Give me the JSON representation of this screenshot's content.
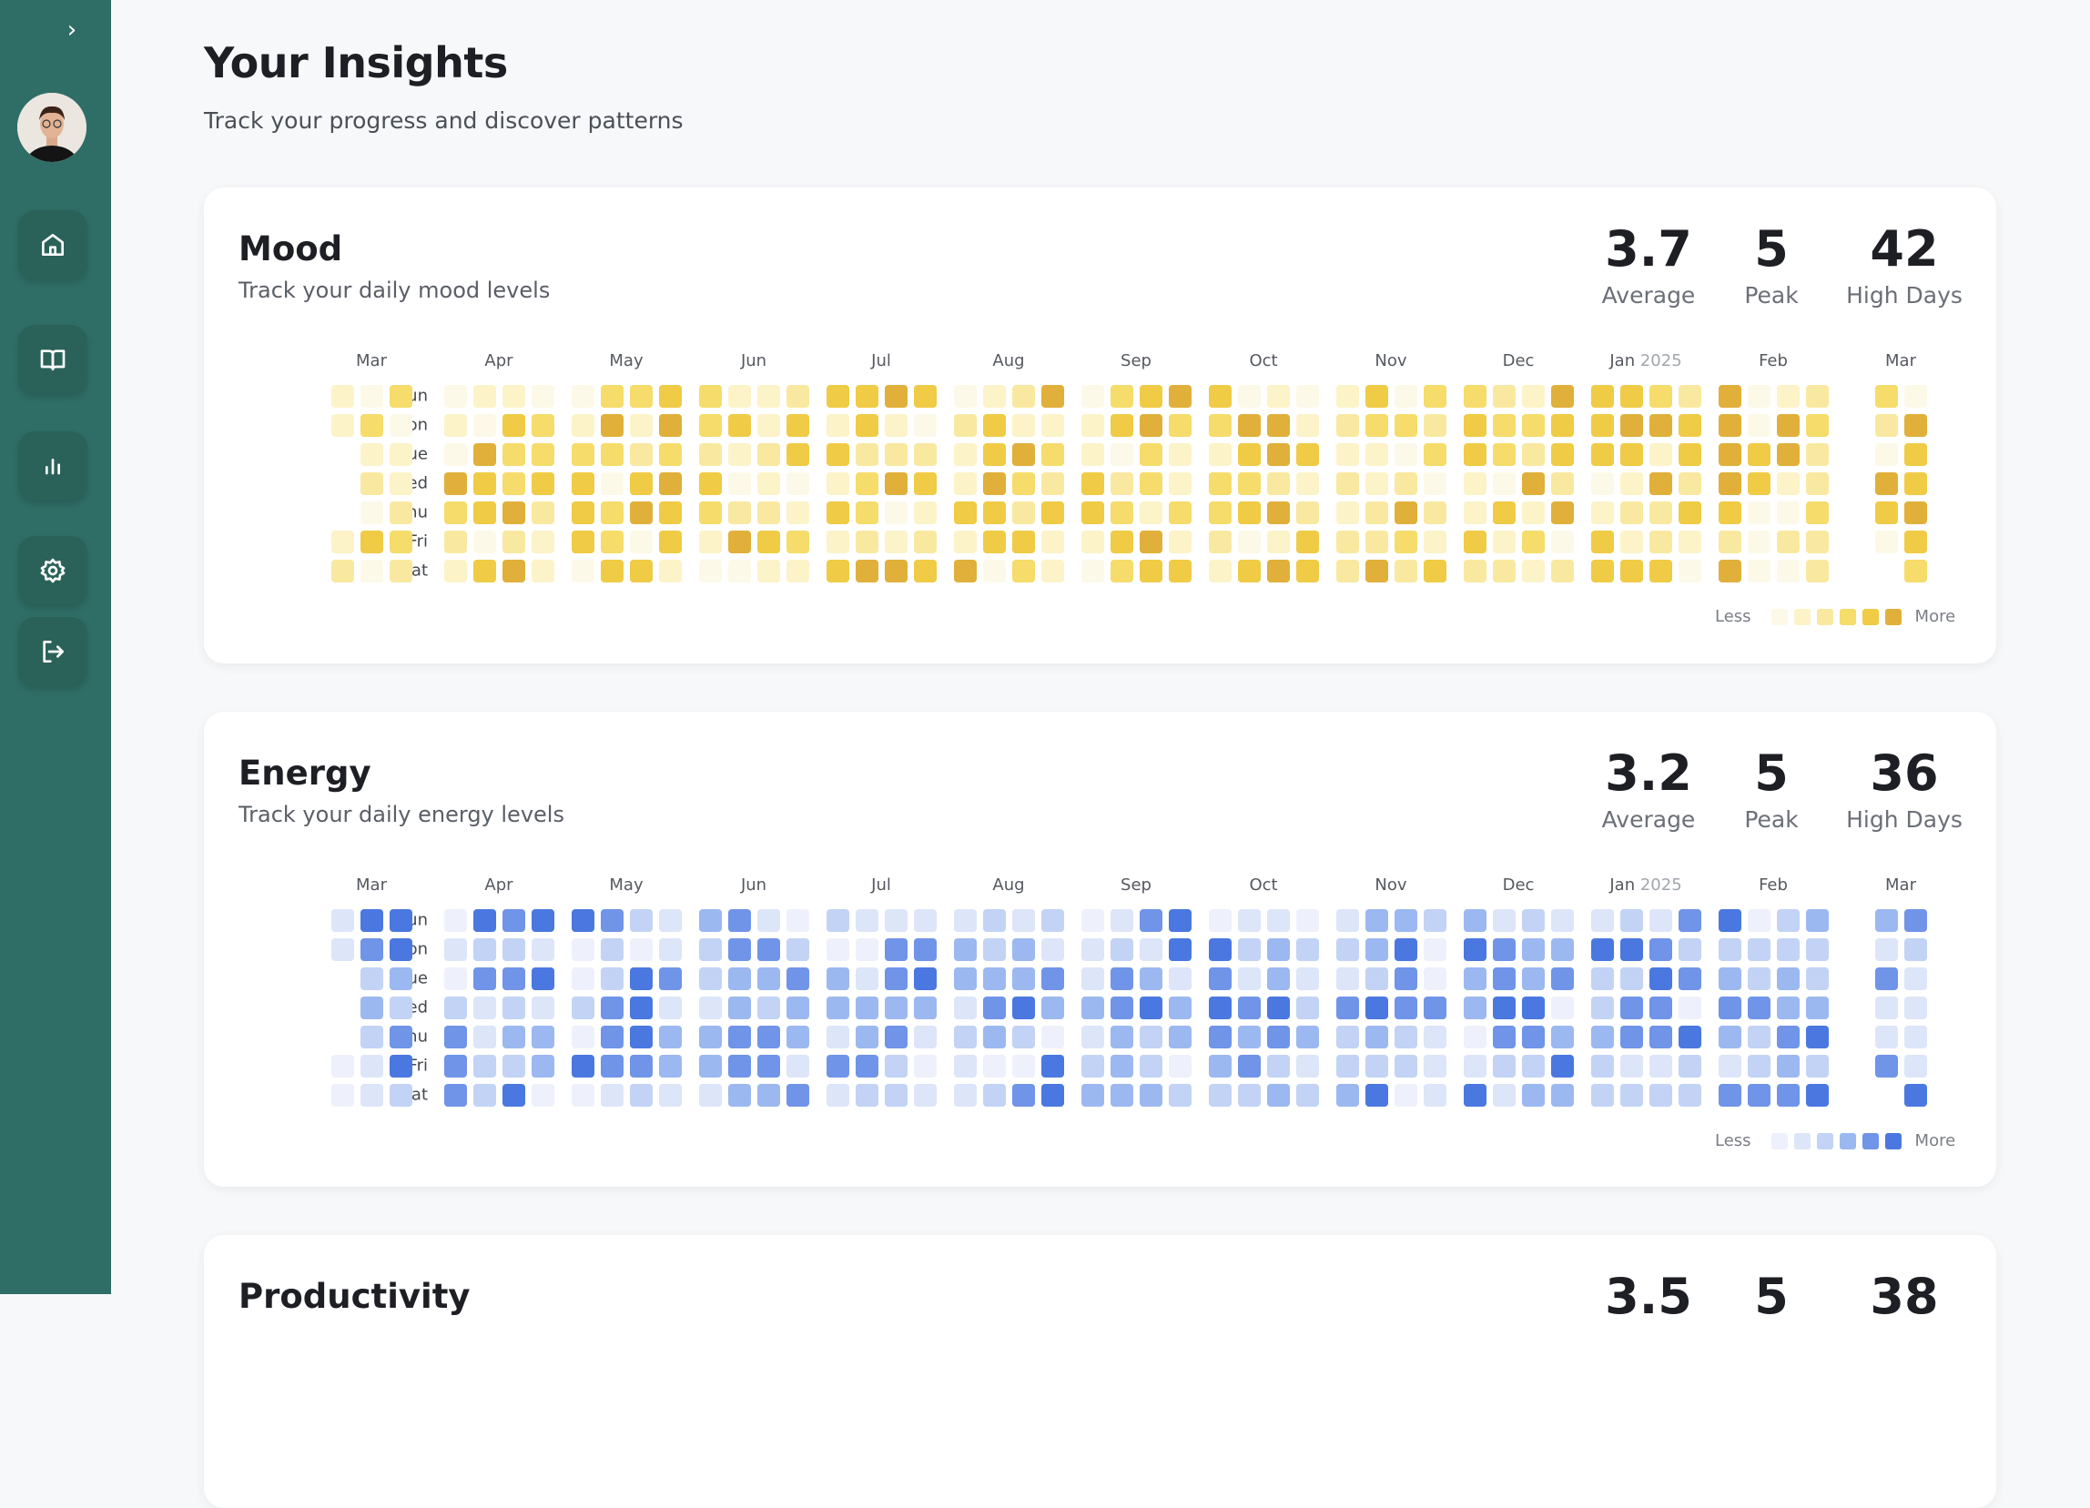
{
  "sidebar": {
    "expand_icon": "chevron-right-icon",
    "items": [
      {
        "name": "home",
        "icon": "home-icon"
      },
      {
        "name": "journal",
        "icon": "book-open-icon"
      },
      {
        "name": "insights",
        "icon": "bar-chart-icon"
      },
      {
        "name": "settings",
        "icon": "gear-icon"
      },
      {
        "name": "logout",
        "icon": "logout-icon"
      }
    ]
  },
  "header": {
    "title": "Your Insights",
    "subtitle": "Track your progress and discover patterns"
  },
  "legend": {
    "less": "Less",
    "more": "More"
  },
  "days": [
    "Sun",
    "Mon",
    "Tue",
    "Wed",
    "Thu",
    "Fri",
    "Sat"
  ],
  "months": [
    {
      "m": "Mar"
    },
    {
      "m": "Apr"
    },
    {
      "m": "May"
    },
    {
      "m": "Jun"
    },
    {
      "m": "Jul"
    },
    {
      "m": "Aug"
    },
    {
      "m": "Sep"
    },
    {
      "m": "Oct"
    },
    {
      "m": "Nov"
    },
    {
      "m": "Dec"
    },
    {
      "m": "Jan",
      "year": "2025"
    },
    {
      "m": "Feb"
    },
    {
      "m": "Mar"
    }
  ],
  "cards": [
    {
      "title": "Mood",
      "subtitle": "Track your daily mood levels",
      "stats": [
        {
          "value": "3.7",
          "label": "Average"
        },
        {
          "value": "5",
          "label": "Peak"
        },
        {
          "value": "42",
          "label": "High Days"
        }
      ],
      "colors": [
        "#fdf9e8",
        "#fcf3c8",
        "#f9e9a0",
        "#f6dc6a",
        "#f0cb45",
        "#e0b03a"
      ],
      "chart_data": {
        "type": "heatmap",
        "levels": [
          0,
          5
        ],
        "weeks_by_month": [
          [
            "103",
            "130",
            ".11",
            ".21",
            ".02",
            "143",
            "202"
          ],
          [
            "0110",
            "1043",
            "0533",
            "5434",
            "3452",
            "2021",
            "1451"
          ],
          [
            "0334",
            "1515",
            "3323",
            "4045",
            "4354",
            "4304",
            "0441"
          ],
          [
            "3112",
            "3414",
            "2124",
            "4010",
            "3221",
            "1543",
            "0011"
          ],
          [
            "4454",
            "1410",
            "4222",
            "1354",
            "4301",
            "1212",
            "4554"
          ],
          [
            "0125",
            "2411",
            "1453",
            "1532",
            "4424",
            "1441",
            "5031"
          ],
          [
            "0345",
            "1453",
            "1031",
            "4231",
            "4313",
            "1451",
            "0344"
          ],
          [
            "4010",
            "3551",
            "1454",
            "3321",
            "3452",
            "2014",
            "1454"
          ],
          [
            "1403",
            "2332",
            "1103",
            "2120",
            "1252",
            "2231",
            "2524"
          ],
          [
            "3215",
            "4334",
            "4324",
            "1052",
            "1415",
            "4130",
            "2212"
          ],
          [
            "4432",
            "4554",
            "4414",
            "0152",
            "1224",
            "4121",
            "4440"
          ],
          [
            "5012",
            "5053",
            "5452",
            "5412",
            "4003",
            "2022",
            "5002"
          ],
          [
            "30",
            "25",
            "04",
            "54",
            "45",
            "04",
            ".3"
          ]
        ]
      }
    },
    {
      "title": "Energy",
      "subtitle": "Track your daily energy levels",
      "stats": [
        {
          "value": "3.2",
          "label": "Average"
        },
        {
          "value": "5",
          "label": "Peak"
        },
        {
          "value": "36",
          "label": "High Days"
        }
      ],
      "colors": [
        "#eef1fb",
        "#dde5f9",
        "#c2d3f5",
        "#9cb8f0",
        "#6f94e8",
        "#4a78e0"
      ],
      "chart_data": {
        "type": "heatmap",
        "levels": [
          0,
          5
        ],
        "weeks_by_month": [
          [
            "155",
            "145",
            ".23",
            ".32",
            ".24",
            "015",
            "012"
          ],
          [
            "0545",
            "1221",
            "0445",
            "2121",
            "4133",
            "4223",
            "4250"
          ],
          [
            "5421",
            "0201",
            "0254",
            "2451",
            "0453",
            "5443",
            "0121"
          ],
          [
            "3410",
            "2442",
            "2334",
            "1323",
            "3443",
            "3441",
            "1334"
          ],
          [
            "2111",
            "0044",
            "3145",
            "3333",
            "1341",
            "4420",
            "1221"
          ],
          [
            "1212",
            "3231",
            "3334",
            "1453",
            "2320",
            "1005",
            "1245"
          ],
          [
            "0145",
            "1215",
            "1431",
            "3453",
            "1323",
            "2320",
            "3332"
          ],
          [
            "0110",
            "5232",
            "4131",
            "5452",
            "4343",
            "3421",
            "2232"
          ],
          [
            "1332",
            "2350",
            "1240",
            "4544",
            "2321",
            "2221",
            "3501"
          ],
          [
            "3121",
            "5433",
            "3434",
            "3550",
            "0443",
            "1225",
            "5133"
          ],
          [
            "1214",
            "5542",
            "2254",
            "2440",
            "3445",
            "2112",
            "2222"
          ],
          [
            "5023",
            "2222",
            "3232",
            "4433",
            "3245",
            "1232",
            "4445"
          ],
          [
            "34",
            "12",
            "41",
            "11",
            "11",
            "41",
            ".5"
          ]
        ]
      }
    },
    {
      "title": "Productivity",
      "stats": [
        {
          "value": "3.5"
        },
        {
          "value": "5"
        },
        {
          "value": "38"
        }
      ]
    }
  ]
}
